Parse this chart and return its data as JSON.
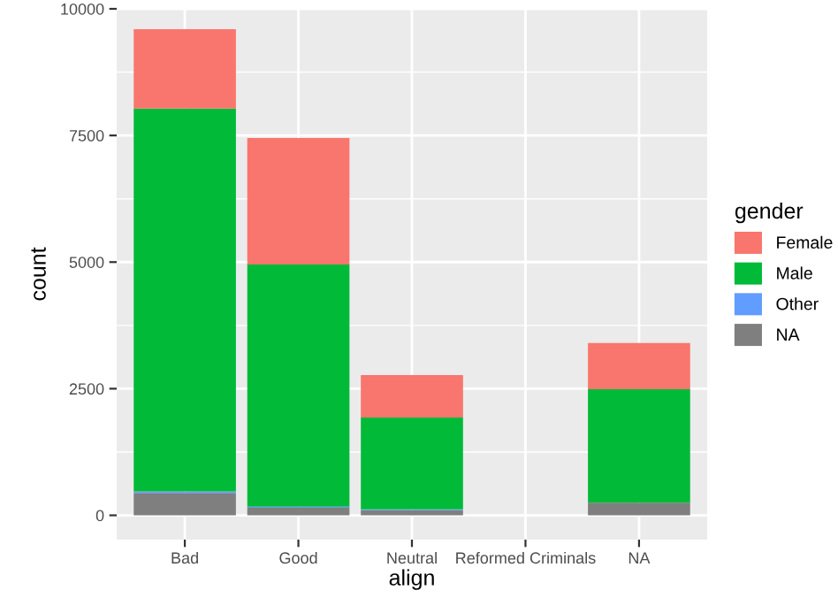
{
  "chart_data": {
    "type": "bar",
    "stacked": true,
    "xlabel": "align",
    "ylabel": "count",
    "legend_title": "gender",
    "legend": "right",
    "grid": true,
    "categories": [
      "Bad",
      "Good",
      "Neutral",
      "Reformed Criminals",
      "NA"
    ],
    "series": [
      {
        "name": "NA",
        "color": "#7f7f7f",
        "values": [
          440,
          150,
          100,
          0,
          250
        ]
      },
      {
        "name": "Other",
        "color": "#619cff",
        "values": [
          30,
          20,
          20,
          0,
          0
        ]
      },
      {
        "name": "Male",
        "color": "#00ba38",
        "values": [
          7560,
          4780,
          1810,
          0,
          2240
        ]
      },
      {
        "name": "Female",
        "color": "#f8766d",
        "values": [
          1570,
          2500,
          840,
          0,
          910
        ]
      }
    ],
    "ylim": [
      -480,
      10000
    ],
    "yticks": [
      0,
      2500,
      5000,
      7500,
      10000
    ]
  }
}
